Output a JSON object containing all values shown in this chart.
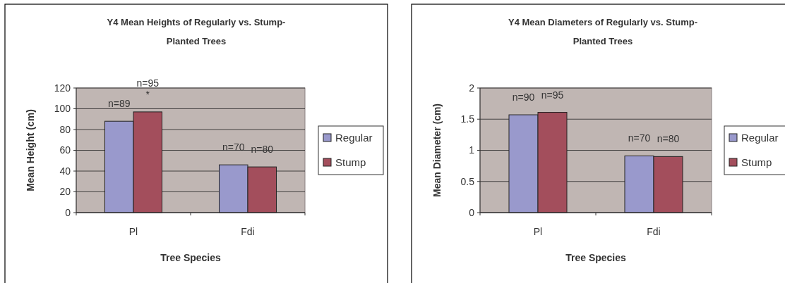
{
  "chart_data": [
    {
      "type": "bar",
      "title": "Y4 Mean Heights of Regularly vs. Stump-Planted Trees",
      "xlabel": "Tree Species",
      "ylabel": "Mean Height (cm)",
      "categories": [
        "Pl",
        "Fdi"
      ],
      "series": [
        {
          "name": "Regular",
          "color": "#9999cc",
          "values": [
            88,
            46
          ]
        },
        {
          "name": "Stump",
          "color": "#a34e5c",
          "values": [
            97,
            44
          ]
        }
      ],
      "ylim": [
        0,
        120
      ],
      "yticks": [
        0,
        20,
        40,
        60,
        80,
        100,
        120
      ],
      "grid": "y",
      "legend": "right",
      "annotations": [
        {
          "text": "n=89",
          "x": "Pl",
          "y": 88
        },
        {
          "text": "*",
          "x": "Pl",
          "y": 97
        },
        {
          "text": "n=95",
          "x": "Pl",
          "y": 97
        },
        {
          "text": "n=70",
          "x": "Fdi",
          "y": 46
        },
        {
          "text": "n=80",
          "x": "Fdi",
          "y": 44
        }
      ]
    },
    {
      "type": "bar",
      "title": "Y4 Mean Diameters of Regularly vs. Stump-Planted Trees",
      "xlabel": "Tree Species",
      "ylabel": "Mean Diameter (cm)",
      "categories": [
        "Pl",
        "Fdi"
      ],
      "series": [
        {
          "name": "Regular",
          "color": "#9999cc",
          "values": [
            1.57,
            0.91
          ]
        },
        {
          "name": "Stump",
          "color": "#a34e5c",
          "values": [
            1.61,
            0.9
          ]
        }
      ],
      "ylim": [
        0,
        2
      ],
      "yticks": [
        0,
        0.5,
        1,
        1.5,
        2
      ],
      "grid": "y",
      "legend": "right",
      "annotations": [
        {
          "text": "n=90",
          "x": "Pl",
          "y": 1.57
        },
        {
          "text": "n=95",
          "x": "Pl",
          "y": 1.61
        },
        {
          "text": "n=70",
          "x": "Fdi",
          "y": 0.91
        },
        {
          "text": "n=80",
          "x": "Fdi",
          "y": 0.9
        }
      ]
    }
  ]
}
